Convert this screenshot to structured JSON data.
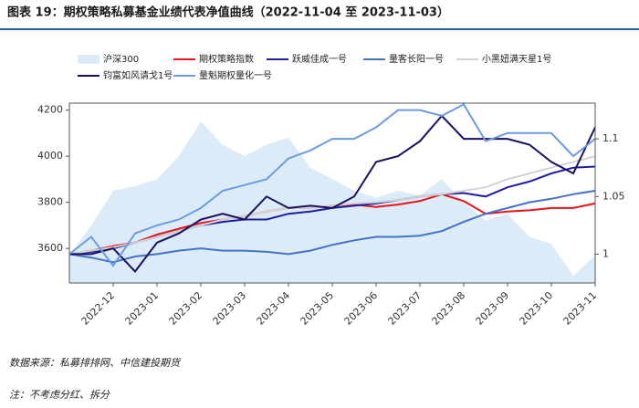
{
  "chart_data": {
    "type": "line",
    "title": "图表 19：期权策略私募基金业绩代表净值曲线（2022-11-04 至 2023-11-03）",
    "source": "数据来源：私募排排网、中信建投期货",
    "note": "注：不考虑分红、拆分",
    "categories": [
      null,
      null,
      "2022-12",
      null,
      "2023-01",
      null,
      "2023-02",
      null,
      "2023-03",
      null,
      "2023-04",
      null,
      "2023-05",
      null,
      "2023-06",
      null,
      "2023-07",
      null,
      "2023-08",
      null,
      "2023-09",
      null,
      "2023-10",
      null,
      "2023-11"
    ],
    "ylim": [
      3450,
      4230
    ],
    "yticks": [
      3600,
      3800,
      4000,
      4200
    ],
    "y2lim": [
      0.975,
      1.131
    ],
    "y2ticks": [
      1,
      1.05,
      1.1
    ],
    "series": [
      {
        "name": "沪深300",
        "color": "#dcebf8",
        "fill": true,
        "values": [
          3570,
          3700,
          3850,
          3870,
          3900,
          4000,
          4150,
          4050,
          4000,
          4050,
          4080,
          3950,
          3900,
          3850,
          3820,
          3850,
          3830,
          3900,
          3800,
          3720,
          3750,
          3650,
          3620,
          3480,
          3570
        ]
      },
      {
        "name": "期权策略指数",
        "color": "#e8131b",
        "axis": "y2",
        "values": [
          1,
          1.003,
          1.007,
          1.01,
          1.017,
          1.022,
          1.027,
          1.03,
          1.033,
          1.037,
          1.04,
          1.04,
          1.042,
          1.043,
          1.041,
          1.043,
          1.046,
          1.052,
          1.046,
          1.035,
          1.037,
          1.038,
          1.04,
          1.04,
          1.044
        ]
      },
      {
        "name": "跃威佳成一号",
        "color": "#1f1f9e",
        "axis": "y2",
        "values": [
          1,
          1.002,
          1.005,
          1.01,
          1.015,
          1.02,
          1.025,
          1.028,
          1.03,
          1.03,
          1.035,
          1.037,
          1.04,
          1.042,
          1.044,
          1.047,
          1.05,
          1.052,
          1.053,
          1.05,
          1.058,
          1.063,
          1.07,
          1.075,
          1.076
        ]
      },
      {
        "name": "量客长阳一号",
        "color": "#4472c4",
        "axis": "y2",
        "values": [
          1,
          0.997,
          0.993,
          0.998,
          1.0,
          1.003,
          1.005,
          1.003,
          1.003,
          1.002,
          1.0,
          1.003,
          1.008,
          1.012,
          1.015,
          1.015,
          1.016,
          1.02,
          1.028,
          1.035,
          1.04,
          1.045,
          1.048,
          1.052,
          1.055
        ]
      },
      {
        "name": "小黑妞满天星1号",
        "color": "#d3d3d3",
        "axis": "y2",
        "values": [
          1,
          1.003,
          1.006,
          1.01,
          1.015,
          1.02,
          1.025,
          1.03,
          1.033,
          1.037,
          1.04,
          1.04,
          1.042,
          1.044,
          1.045,
          1.047,
          1.05,
          1.052,
          1.055,
          1.058,
          1.065,
          1.07,
          1.075,
          1.08,
          1.085
        ]
      },
      {
        "name": "钧富如风请戈1号",
        "color": "#1a1060",
        "axis": "y2",
        "values": [
          1,
          1.0,
          1.005,
          0.985,
          1.01,
          1.018,
          1.03,
          1.035,
          1.03,
          1.05,
          1.04,
          1.042,
          1.04,
          1.05,
          1.08,
          1.085,
          1.098,
          1.12,
          1.1,
          1.1,
          1.1,
          1.095,
          1.08,
          1.07,
          1.11
        ]
      },
      {
        "name": "量魁期权量化一号",
        "color": "#6b9be0",
        "axis": "y2",
        "values": [
          1,
          1.015,
          0.99,
          1.018,
          1.025,
          1.03,
          1.04,
          1.055,
          1.06,
          1.065,
          1.083,
          1.09,
          1.1,
          1.1,
          1.11,
          1.125,
          1.125,
          1.12,
          1.13,
          1.098,
          1.105,
          1.105,
          1.105,
          1.085,
          1.1
        ]
      }
    ]
  }
}
